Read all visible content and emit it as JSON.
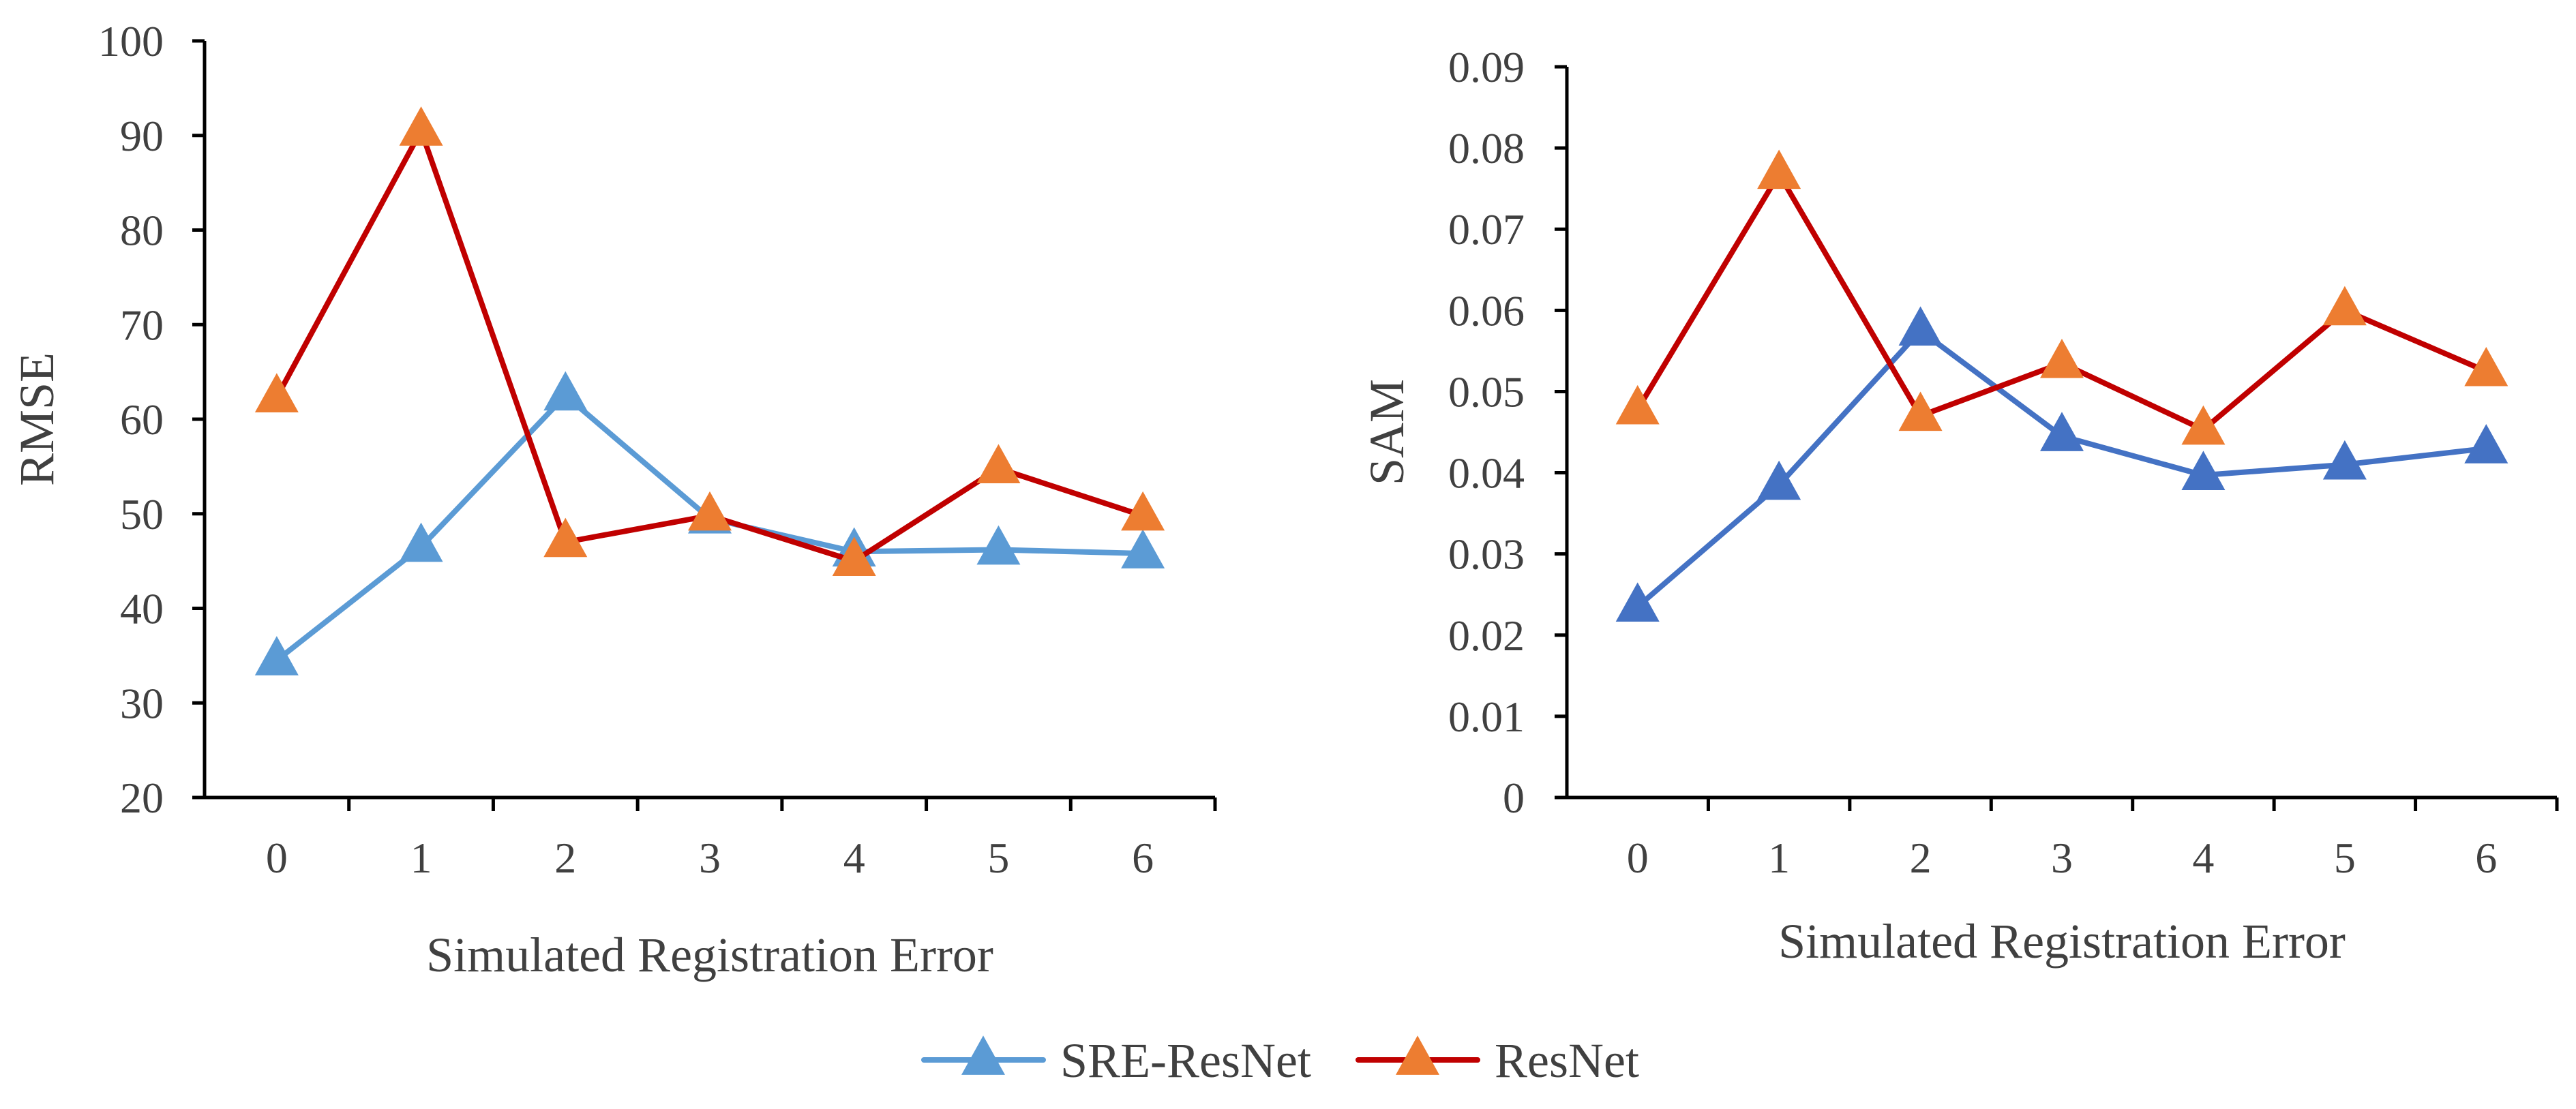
{
  "chart_data": [
    {
      "type": "line",
      "title": "",
      "xlabel": "Simulated Registration Error",
      "ylabel": "RMSE",
      "categories": [
        "0",
        "1",
        "2",
        "3",
        "4",
        "5",
        "6"
      ],
      "ylim": [
        20,
        100
      ],
      "yticks": [
        "20",
        "30",
        "40",
        "50",
        "60",
        "70",
        "80",
        "90",
        "100"
      ],
      "ytick_values": [
        20,
        30,
        40,
        50,
        60,
        70,
        80,
        90,
        100
      ],
      "series": [
        {
          "name": "SRE-ResNet",
          "values": [
            34.5,
            46.5,
            62.5,
            49.5,
            46,
            46.2,
            45.8
          ],
          "line_color": "#5B9BD5",
          "marker_color": "#5B9BD5"
        },
        {
          "name": "ResNet",
          "values": [
            62.3,
            90.5,
            47,
            49.8,
            45,
            54.8,
            49.8
          ],
          "line_color": "#C00000",
          "marker_color": "#ED7D31"
        }
      ]
    },
    {
      "type": "line",
      "title": "",
      "xlabel": "Simulated Registration Error",
      "ylabel": "SAM",
      "categories": [
        "0",
        "1",
        "2",
        "3",
        "4",
        "5",
        "6"
      ],
      "ylim": [
        0,
        0.09
      ],
      "yticks": [
        "0",
        "0.01",
        "0.02",
        "0.03",
        "0.04",
        "0.05",
        "0.06",
        "0.07",
        "0.08",
        "0.09"
      ],
      "ytick_values": [
        0,
        0.01,
        0.02,
        0.03,
        0.04,
        0.05,
        0.06,
        0.07,
        0.08,
        0.09
      ],
      "series": [
        {
          "name": "SRE-ResNet",
          "values": [
            0.0235,
            0.0385,
            0.0575,
            0.0445,
            0.0397,
            0.041,
            0.043
          ],
          "line_color": "#4472C4",
          "marker_color": "#4472C4"
        },
        {
          "name": "ResNet",
          "values": [
            0.0478,
            0.0768,
            0.047,
            0.0535,
            0.0453,
            0.06,
            0.0525
          ],
          "line_color": "#C00000",
          "marker_color": "#ED7D31"
        }
      ]
    }
  ],
  "legend": {
    "position": "bottom-center",
    "items": [
      {
        "label": "SRE-ResNet",
        "line_color": "#5B9BD5",
        "marker_color": "#5B9BD5"
      },
      {
        "label": "ResNet",
        "line_color": "#C00000",
        "marker_color": "#ED7D31"
      }
    ]
  }
}
